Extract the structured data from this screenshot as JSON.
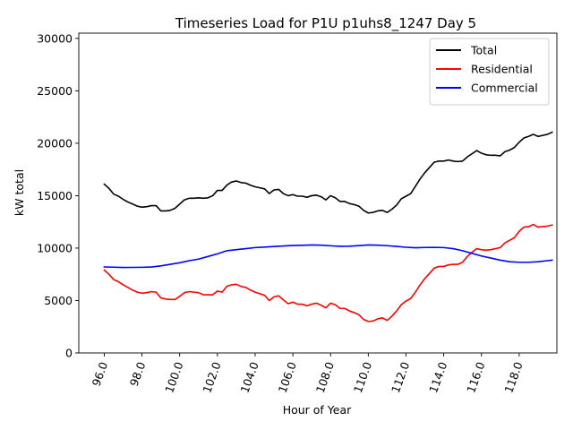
{
  "chart_data": {
    "type": "line",
    "title": "Timeseries Load for P1U p1uhs8_1247  Day 5",
    "xlabel": "Hour of Year",
    "ylabel": "kW total",
    "xlim": [
      94.65,
      120.0
    ],
    "ylim": [
      0,
      30500
    ],
    "x_ticks": [
      96.0,
      98.0,
      100.0,
      102.0,
      104.0,
      106.0,
      108.0,
      110.0,
      112.0,
      114.0,
      116.0,
      118.0
    ],
    "x_tick_labels": [
      "96.0",
      "98.0",
      "100.0",
      "102.0",
      "104.0",
      "106.0",
      "108.0",
      "110.0",
      "112.0",
      "114.0",
      "116.0",
      "118.0"
    ],
    "y_ticks": [
      0,
      5000,
      10000,
      15000,
      20000,
      25000,
      30000
    ],
    "y_tick_labels": [
      "0",
      "5000",
      "10000",
      "15000",
      "20000",
      "25000",
      "30000"
    ],
    "legend_position": "top-right",
    "series": [
      {
        "name": "Total",
        "color": "#000000",
        "x": [
          96.0,
          96.25,
          96.5,
          96.75,
          97.0,
          97.25,
          97.5,
          97.75,
          98.0,
          98.25,
          98.5,
          98.75,
          99.0,
          99.25,
          99.5,
          99.75,
          100.0,
          100.25,
          100.5,
          100.75,
          101.0,
          101.25,
          101.5,
          101.75,
          102.0,
          102.25,
          102.5,
          102.75,
          103.0,
          103.25,
          103.5,
          103.75,
          104.0,
          104.25,
          104.5,
          104.75,
          105.0,
          105.25,
          105.5,
          105.75,
          106.0,
          106.25,
          106.5,
          106.75,
          107.0,
          107.25,
          107.5,
          107.75,
          108.0,
          108.25,
          108.5,
          108.75,
          109.0,
          109.25,
          109.5,
          109.75,
          110.0,
          110.25,
          110.5,
          110.75,
          111.0,
          111.25,
          111.5,
          111.75,
          112.0,
          112.25,
          112.5,
          112.75,
          113.0,
          113.25,
          113.5,
          113.75,
          114.0,
          114.25,
          114.5,
          114.75,
          115.0,
          115.25,
          115.5,
          115.75,
          116.0,
          116.25,
          116.5,
          116.75,
          117.0,
          117.25,
          117.5,
          117.75,
          118.0,
          118.25,
          118.5,
          118.75,
          119.0,
          119.25,
          119.5,
          119.75
        ],
        "values": [
          16100,
          15700,
          15150,
          14950,
          14650,
          14400,
          14200,
          14000,
          13900,
          13950,
          14050,
          14050,
          13550,
          13550,
          13600,
          13800,
          14200,
          14600,
          14750,
          14750,
          14800,
          14750,
          14800,
          15000,
          15500,
          15500,
          16000,
          16300,
          16400,
          16250,
          16200,
          16000,
          15850,
          15750,
          15650,
          15200,
          15550,
          15600,
          15200,
          15000,
          15100,
          14950,
          14950,
          14850,
          15000,
          15050,
          14900,
          14600,
          15000,
          14800,
          14450,
          14450,
          14250,
          14150,
          14000,
          13600,
          13350,
          13400,
          13550,
          13600,
          13400,
          13700,
          14100,
          14700,
          14950,
          15200,
          15900,
          16600,
          17200,
          17700,
          18200,
          18300,
          18300,
          18400,
          18300,
          18250,
          18300,
          18700,
          19000,
          19300,
          19050,
          18900,
          18850,
          18850,
          18800,
          19200,
          19350,
          19600,
          20100,
          20500,
          20650,
          20850,
          20650,
          20750,
          20850,
          21050
        ]
      },
      {
        "name": "Residential",
        "color": "#ff0000",
        "x": [
          96.0,
          96.25,
          96.5,
          96.75,
          97.0,
          97.25,
          97.5,
          97.75,
          98.0,
          98.25,
          98.5,
          98.75,
          99.0,
          99.25,
          99.5,
          99.75,
          100.0,
          100.25,
          100.5,
          100.75,
          101.0,
          101.25,
          101.5,
          101.75,
          102.0,
          102.25,
          102.5,
          102.75,
          103.0,
          103.25,
          103.5,
          103.75,
          104.0,
          104.25,
          104.5,
          104.75,
          105.0,
          105.25,
          105.5,
          105.75,
          106.0,
          106.25,
          106.5,
          106.75,
          107.0,
          107.25,
          107.5,
          107.75,
          108.0,
          108.25,
          108.5,
          108.75,
          109.0,
          109.25,
          109.5,
          109.75,
          110.0,
          110.25,
          110.5,
          110.75,
          111.0,
          111.25,
          111.5,
          111.75,
          112.0,
          112.25,
          112.5,
          112.75,
          113.0,
          113.25,
          113.5,
          113.75,
          114.0,
          114.25,
          114.5,
          114.75,
          115.0,
          115.25,
          115.5,
          115.75,
          116.0,
          116.25,
          116.5,
          116.75,
          117.0,
          117.25,
          117.5,
          117.75,
          118.0,
          118.25,
          118.5,
          118.75,
          119.0,
          119.25,
          119.5,
          119.75
        ],
        "values": [
          7900,
          7500,
          7000,
          6800,
          6500,
          6250,
          6000,
          5800,
          5700,
          5750,
          5850,
          5800,
          5250,
          5150,
          5100,
          5100,
          5400,
          5750,
          5850,
          5800,
          5750,
          5550,
          5550,
          5550,
          5900,
          5800,
          6350,
          6500,
          6550,
          6350,
          6250,
          6000,
          5800,
          5650,
          5500,
          5000,
          5350,
          5450,
          5050,
          4700,
          4850,
          4650,
          4650,
          4500,
          4650,
          4750,
          4550,
          4300,
          4750,
          4600,
          4250,
          4250,
          4000,
          3850,
          3650,
          3200,
          3000,
          3050,
          3250,
          3350,
          3100,
          3500,
          4000,
          4600,
          4950,
          5200,
          5800,
          6500,
          7100,
          7600,
          8100,
          8250,
          8250,
          8400,
          8450,
          8450,
          8650,
          9200,
          9600,
          9950,
          9850,
          9800,
          9850,
          9950,
          10050,
          10500,
          10750,
          11000,
          11600,
          12000,
          12050,
          12250,
          12000,
          12050,
          12100,
          12200
        ]
      },
      {
        "name": "Commercial",
        "color": "#0000ff",
        "x": [
          96.0,
          96.5,
          97.0,
          97.5,
          98.0,
          98.5,
          99.0,
          99.5,
          100.0,
          100.5,
          101.0,
          101.5,
          102.0,
          102.5,
          103.0,
          103.5,
          104.0,
          104.5,
          105.0,
          105.5,
          106.0,
          106.5,
          107.0,
          107.5,
          108.0,
          108.5,
          109.0,
          109.5,
          110.0,
          110.5,
          111.0,
          111.5,
          112.0,
          112.5,
          113.0,
          113.5,
          114.0,
          114.5,
          115.0,
          115.5,
          116.0,
          116.5,
          117.0,
          117.5,
          118.0,
          118.5,
          119.0,
          119.5,
          119.75
        ],
        "values": [
          8200,
          8180,
          8150,
          8160,
          8170,
          8200,
          8300,
          8450,
          8600,
          8800,
          8950,
          9200,
          9450,
          9750,
          9850,
          9950,
          10050,
          10100,
          10150,
          10200,
          10250,
          10270,
          10300,
          10280,
          10220,
          10170,
          10180,
          10240,
          10300,
          10280,
          10230,
          10160,
          10080,
          10030,
          10060,
          10070,
          10050,
          9950,
          9750,
          9500,
          9250,
          9050,
          8850,
          8700,
          8650,
          8650,
          8700,
          8800,
          8850
        ]
      }
    ]
  }
}
